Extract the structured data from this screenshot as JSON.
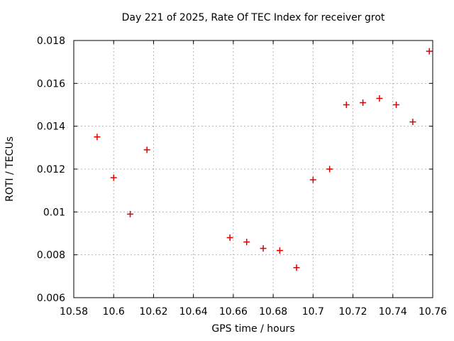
{
  "chart_data": {
    "type": "scatter",
    "title": "Day 221 of 2025, Rate Of TEC Index for receiver grot",
    "xlabel": "GPS time / hours",
    "ylabel": "ROTI / TECUs",
    "xlim": [
      10.58,
      10.76
    ],
    "ylim": [
      0.006,
      0.018
    ],
    "xticks": [
      "10.58",
      "10.6",
      "10.62",
      "10.64",
      "10.66",
      "10.68",
      "10.7",
      "10.72",
      "10.74",
      "10.76"
    ],
    "yticks": [
      "0.006",
      "0.008",
      "0.01",
      "0.012",
      "0.014",
      "0.016",
      "0.018"
    ],
    "grid": true,
    "legend": "none",
    "marker": "plus",
    "colors": {
      "marker": "#e00000",
      "grid": "#b4b4b4",
      "axis": "#000000",
      "text": "#000000",
      "background": "#ffffff"
    },
    "series": [
      {
        "name": "ROTI",
        "x": [
          10.5917,
          10.6,
          10.6083,
          10.6167,
          10.6583,
          10.6667,
          10.675,
          10.6833,
          10.6917,
          10.7,
          10.7083,
          10.7167,
          10.725,
          10.7333,
          10.7417,
          10.75,
          10.7583
        ],
        "y": [
          0.0135,
          0.0116,
          0.0099,
          0.0129,
          0.0088,
          0.0086,
          0.0083,
          0.0082,
          0.0074,
          0.0115,
          0.012,
          0.015,
          0.0151,
          0.0153,
          0.015,
          0.0142,
          0.0175
        ]
      }
    ]
  }
}
